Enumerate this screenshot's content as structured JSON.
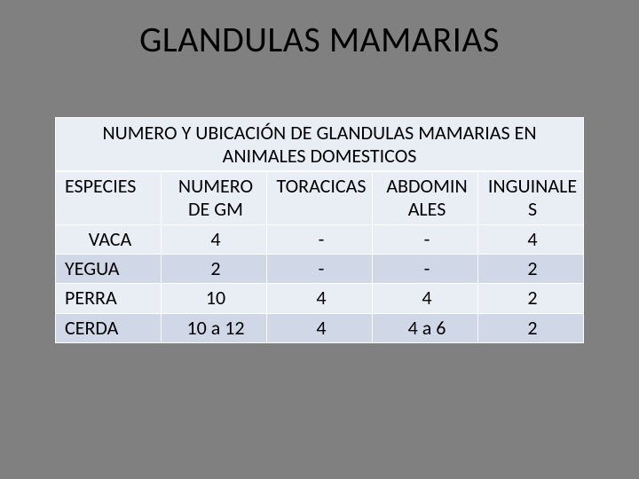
{
  "page_title": "GLANDULAS MAMARIAS",
  "table": {
    "type": "table",
    "title": "NUMERO Y UBICACIÓN DE GLANDULAS MAMARIAS EN ANIMALES DOMESTICOS",
    "columns": [
      "ESPECIES",
      "NUMERO DE GM",
      "TORACICAS",
      "ABDOMINALES",
      "INGUINALES"
    ],
    "rows": [
      [
        "VACA",
        "4",
        "-",
        "-",
        "4"
      ],
      [
        "YEGUA",
        "2",
        "-",
        "-",
        "2"
      ],
      [
        "PERRA",
        "10",
        "4",
        "4",
        "2"
      ],
      [
        "CERDA",
        "10 a 12",
        "4",
        "4 a 6",
        "2"
      ]
    ],
    "colors": {
      "slide_background": "#808080",
      "band_a": "#e9edf4",
      "band_b": "#d0d8e8",
      "border": "#ffffff",
      "text": "#000000"
    },
    "font": {
      "title_size_pt": 40,
      "table_title_size_pt": 22,
      "cell_size_pt": 22,
      "family": "Calibri"
    },
    "column_widths_pct": [
      20,
      20,
      20,
      20,
      20
    ],
    "row_banding": [
      "a",
      "b",
      "a",
      "b"
    ]
  }
}
